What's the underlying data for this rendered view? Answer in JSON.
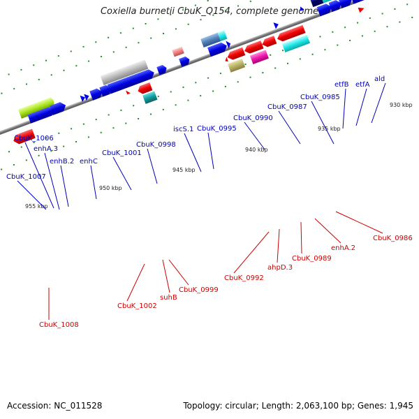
{
  "title": "Coxiella burnetii CbuK_Q154, complete genome",
  "footer": {
    "accession": "Accession: NC_011528",
    "topology": "Topology: circular; Length: 2,063,100 bp; Genes: 1,945"
  },
  "colors": {
    "forward_label": "#0000bb",
    "reverse_label": "#cc0000",
    "backbone": "#888888",
    "tick_dot": "#2a8a2a"
  },
  "ticks": [
    "955 kbp",
    "950 kbp",
    "945 kbp",
    "940 kbp",
    "935 kbp",
    "930 kbp"
  ],
  "forward_labels": [
    "CbuK_1007",
    "CbuK_1006",
    "enhA.3",
    "enhB.2",
    "enhC",
    "CbuK_1001",
    "CbuK_0998",
    "iscS.1",
    "CbuK_0995",
    "CbuK_0990",
    "CbuK_0987",
    "CbuK_0985",
    "etfB",
    "etfA",
    "ald"
  ],
  "reverse_labels": [
    "CbuK_1008",
    "CbuK_1002",
    "suhB",
    "CbuK_0999",
    "CbuK_0992",
    "ahpD.3",
    "CbuK_0989",
    "enhA.2",
    "CbuK_0986"
  ]
}
